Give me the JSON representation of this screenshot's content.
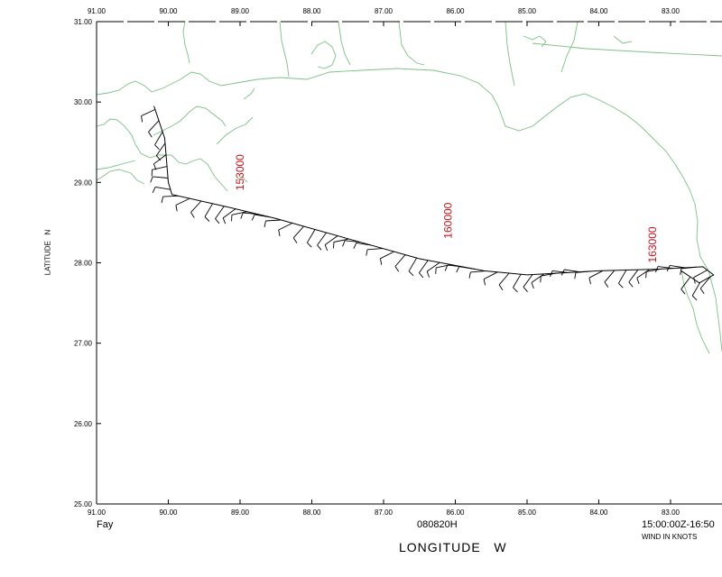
{
  "storm_name": "Fay",
  "date_code": "080820H",
  "time_range": "15:00:00Z-16:50",
  "wind_units": "WIND IN KNOTS",
  "xlabel": "LONGITUDE   W",
  "ylabel": "LATITUDE   N",
  "colors": {
    "coast": "#7dc083",
    "track": "#000000",
    "time_labels": "#c0141c"
  },
  "chart_data": {
    "type": "map",
    "x_range": [
      91,
      82.2
    ],
    "y_range": [
      25,
      31
    ],
    "x_ticks": [
      "91.00",
      "90.00",
      "89.00",
      "88.00",
      "87.00",
      "86.00",
      "85.00",
      "84.00",
      "83.00"
    ],
    "y_ticks": [
      "25.00",
      "26.00",
      "27.00",
      "28.00",
      "29.00",
      "30.00",
      "31.00"
    ],
    "time_labels": [
      {
        "text": "153000",
        "lon": 88.95,
        "lat": 28.9
      },
      {
        "text": "160000",
        "lon": 86.05,
        "lat": 28.3
      },
      {
        "text": "163000",
        "lon": 83.2,
        "lat": 28.0
      }
    ],
    "flight_track": [
      [
        90.2,
        29.95
      ],
      [
        90.05,
        29.55
      ],
      [
        90.0,
        29.0
      ],
      [
        89.95,
        28.85
      ],
      [
        89.2,
        28.7
      ],
      [
        88.5,
        28.55
      ],
      [
        87.5,
        28.3
      ],
      [
        86.5,
        28.05
      ],
      [
        85.9,
        27.95
      ],
      [
        85.6,
        27.9
      ],
      [
        85.0,
        27.85
      ],
      [
        84.0,
        27.9
      ],
      [
        83.2,
        27.92
      ],
      [
        82.55,
        27.95
      ],
      [
        82.4,
        27.85
      ],
      [
        82.6,
        27.75
      ],
      [
        82.85,
        27.9
      ]
    ]
  }
}
